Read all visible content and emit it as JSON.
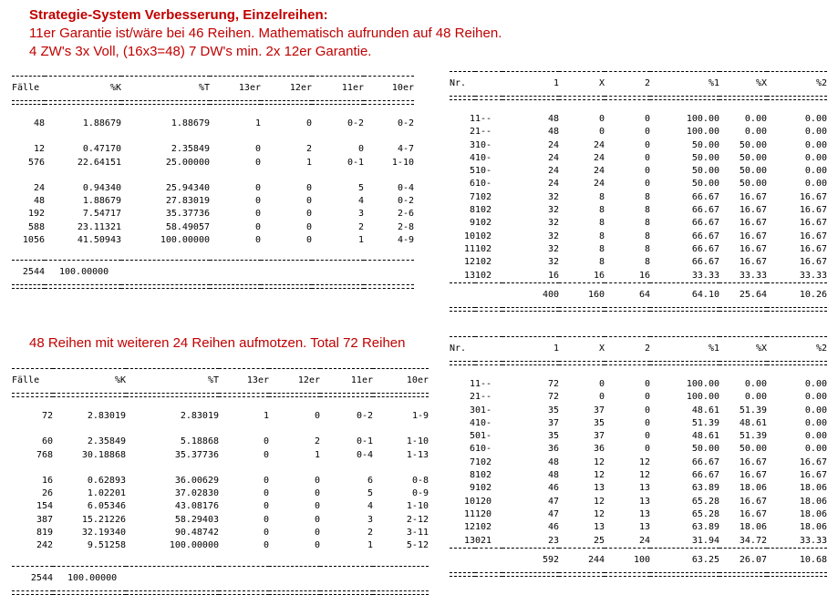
{
  "headings": {
    "title": "Strategie-System Verbesserung, Einzelreihen:",
    "line1": "11er Garantie ist/wäre bei 46 Reihen. Mathematisch aufrunden auf 48 Reihen.",
    "line2": "4 ZW's 3x Voll, (16x3=48) 7 DW's min. 2x 12er Garantie.",
    "line3": "48 Reihen mit weiteren 24 Reihen aufmotzen. Total 72 Reihen"
  },
  "cases_table_1": {
    "headers": [
      "Fälle",
      "%K",
      "%T",
      "13er",
      "12er",
      "11er",
      "10er"
    ],
    "groups": [
      [
        [
          "48",
          "1.88679",
          "1.88679",
          "1",
          "0",
          "0-2",
          "0-2"
        ]
      ],
      [
        [
          "12",
          "0.47170",
          "2.35849",
          "0",
          "2",
          "0",
          "4-7"
        ],
        [
          "576",
          "22.64151",
          "25.00000",
          "0",
          "1",
          "0-1",
          "1-10"
        ]
      ],
      [
        [
          "24",
          "0.94340",
          "25.94340",
          "0",
          "0",
          "5",
          "0-4"
        ],
        [
          "48",
          "1.88679",
          "27.83019",
          "0",
          "0",
          "4",
          "0-2"
        ],
        [
          "192",
          "7.54717",
          "35.37736",
          "0",
          "0",
          "3",
          "2-6"
        ],
        [
          "588",
          "23.11321",
          "58.49057",
          "0",
          "0",
          "2",
          "2-8"
        ],
        [
          "1056",
          "41.50943",
          "100.00000",
          "0",
          "0",
          "1",
          "4-9"
        ]
      ]
    ],
    "total": [
      "2544",
      "100.00000"
    ]
  },
  "cases_table_2": {
    "headers": [
      "Fälle",
      "%K",
      "%T",
      "13er",
      "12er",
      "11er",
      "10er"
    ],
    "groups": [
      [
        [
          "72",
          "2.83019",
          "2.83019",
          "1",
          "0",
          "0-2",
          "1-9"
        ]
      ],
      [
        [
          "60",
          "2.35849",
          "5.18868",
          "0",
          "2",
          "0-1",
          "1-10"
        ],
        [
          "768",
          "30.18868",
          "35.37736",
          "0",
          "1",
          "0-4",
          "1-13"
        ]
      ],
      [
        [
          "16",
          "0.62893",
          "36.00629",
          "0",
          "0",
          "6",
          "0-8"
        ],
        [
          "26",
          "1.02201",
          "37.02830",
          "0",
          "0",
          "5",
          "0-9"
        ],
        [
          "154",
          "6.05346",
          "43.08176",
          "0",
          "0",
          "4",
          "1-10"
        ],
        [
          "387",
          "15.21226",
          "58.29403",
          "0",
          "0",
          "3",
          "2-12"
        ],
        [
          "819",
          "32.19340",
          "90.48742",
          "0",
          "0",
          "2",
          "3-11"
        ],
        [
          "242",
          "9.51258",
          "100.00000",
          "0",
          "0",
          "1",
          "5-12"
        ]
      ]
    ],
    "total": [
      "2544",
      "100.00000"
    ]
  },
  "distribution_table_1": {
    "headers": [
      "Nr.",
      "",
      "1",
      "X",
      "2",
      "%1",
      "%X",
      "%2"
    ],
    "rows": [
      [
        "1",
        "1--",
        "48",
        "0",
        "0",
        "100.00",
        "0.00",
        "0.00"
      ],
      [
        "2",
        "1--",
        "48",
        "0",
        "0",
        "100.00",
        "0.00",
        "0.00"
      ],
      [
        "3",
        "10-",
        "24",
        "24",
        "0",
        "50.00",
        "50.00",
        "0.00"
      ],
      [
        "4",
        "10-",
        "24",
        "24",
        "0",
        "50.00",
        "50.00",
        "0.00"
      ],
      [
        "5",
        "10-",
        "24",
        "24",
        "0",
        "50.00",
        "50.00",
        "0.00"
      ],
      [
        "6",
        "10-",
        "24",
        "24",
        "0",
        "50.00",
        "50.00",
        "0.00"
      ],
      [
        "7",
        "102",
        "32",
        "8",
        "8",
        "66.67",
        "16.67",
        "16.67"
      ],
      [
        "8",
        "102",
        "32",
        "8",
        "8",
        "66.67",
        "16.67",
        "16.67"
      ],
      [
        "9",
        "102",
        "32",
        "8",
        "8",
        "66.67",
        "16.67",
        "16.67"
      ],
      [
        "10",
        "102",
        "32",
        "8",
        "8",
        "66.67",
        "16.67",
        "16.67"
      ],
      [
        "11",
        "102",
        "32",
        "8",
        "8",
        "66.67",
        "16.67",
        "16.67"
      ],
      [
        "12",
        "102",
        "32",
        "8",
        "8",
        "66.67",
        "16.67",
        "16.67"
      ],
      [
        "13",
        "102",
        "16",
        "16",
        "16",
        "33.33",
        "33.33",
        "33.33"
      ]
    ],
    "total": [
      "400",
      "160",
      "64",
      "64.10",
      "25.64",
      "10.26"
    ]
  },
  "distribution_table_2": {
    "headers": [
      "Nr.",
      "",
      "1",
      "X",
      "2",
      "%1",
      "%X",
      "%2"
    ],
    "rows": [
      [
        "1",
        "1--",
        "72",
        "0",
        "0",
        "100.00",
        "0.00",
        "0.00"
      ],
      [
        "2",
        "1--",
        "72",
        "0",
        "0",
        "100.00",
        "0.00",
        "0.00"
      ],
      [
        "3",
        "01-",
        "35",
        "37",
        "0",
        "48.61",
        "51.39",
        "0.00"
      ],
      [
        "4",
        "10-",
        "37",
        "35",
        "0",
        "51.39",
        "48.61",
        "0.00"
      ],
      [
        "5",
        "01-",
        "35",
        "37",
        "0",
        "48.61",
        "51.39",
        "0.00"
      ],
      [
        "6",
        "10-",
        "36",
        "36",
        "0",
        "50.00",
        "50.00",
        "0.00"
      ],
      [
        "7",
        "102",
        "48",
        "12",
        "12",
        "66.67",
        "16.67",
        "16.67"
      ],
      [
        "8",
        "102",
        "48",
        "12",
        "12",
        "66.67",
        "16.67",
        "16.67"
      ],
      [
        "9",
        "102",
        "46",
        "13",
        "13",
        "63.89",
        "18.06",
        "18.06"
      ],
      [
        "10",
        "120",
        "47",
        "12",
        "13",
        "65.28",
        "16.67",
        "18.06"
      ],
      [
        "11",
        "120",
        "47",
        "12",
        "13",
        "65.28",
        "16.67",
        "18.06"
      ],
      [
        "12",
        "102",
        "46",
        "13",
        "13",
        "63.89",
        "18.06",
        "18.06"
      ],
      [
        "13",
        "021",
        "23",
        "25",
        "24",
        "31.94",
        "34.72",
        "33.33"
      ]
    ],
    "total": [
      "592",
      "244",
      "100",
      "63.25",
      "26.07",
      "10.68"
    ]
  }
}
